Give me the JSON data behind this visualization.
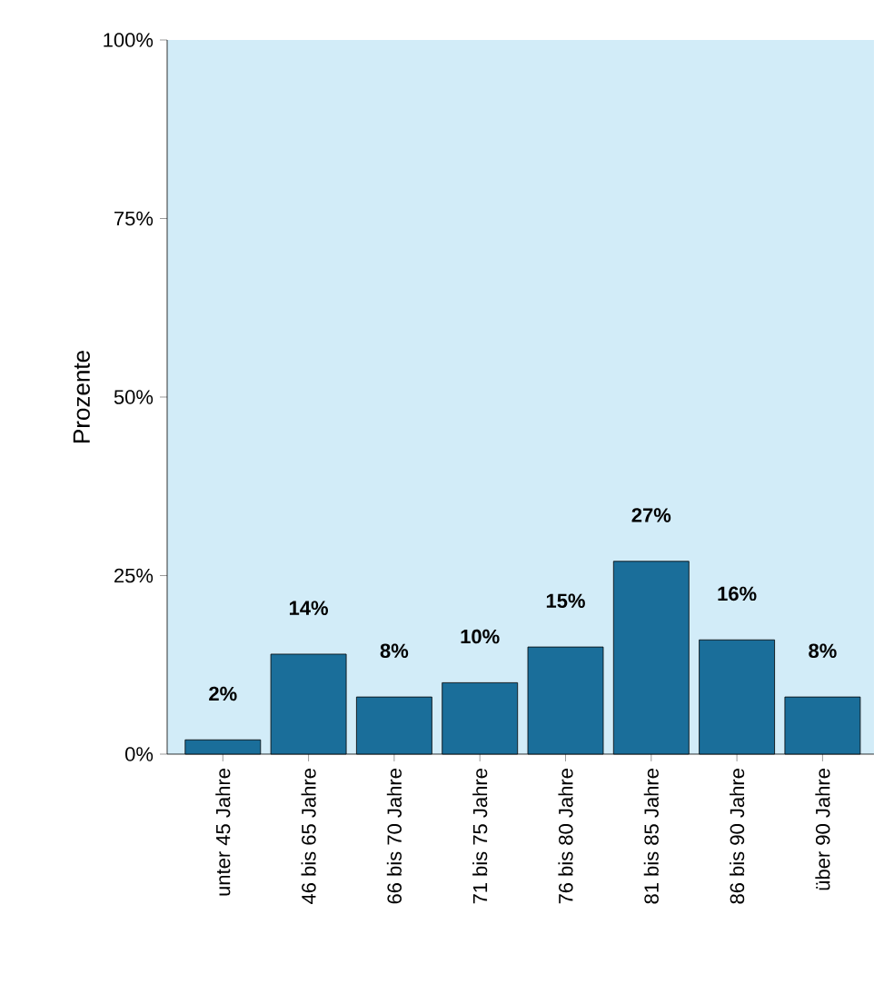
{
  "chart_data": {
    "type": "bar",
    "ylabel": "Prozente",
    "categories": [
      "unter 45 Jahre",
      "46 bis 65 Jahre",
      "66 bis 70 Jahre",
      "71 bis 75 Jahre",
      "76 bis 80 Jahre",
      "81 bis 85 Jahre",
      "86 bis 90 Jahre",
      "über 90 Jahre"
    ],
    "values": [
      2,
      14,
      8,
      10,
      15,
      27,
      16,
      8
    ],
    "value_labels": [
      "2%",
      "14%",
      "8%",
      "10%",
      "15%",
      "27%",
      "16%",
      "8%"
    ],
    "color": "#1a6e9a",
    "ylim": [
      0,
      100
    ],
    "yticks": [
      {
        "value": 0,
        "label": "0%"
      },
      {
        "value": 25,
        "label": "25%"
      },
      {
        "value": 50,
        "label": "50%"
      },
      {
        "value": 75,
        "label": "75%"
      },
      {
        "value": 100,
        "label": "100%"
      }
    ],
    "grid": false
  }
}
